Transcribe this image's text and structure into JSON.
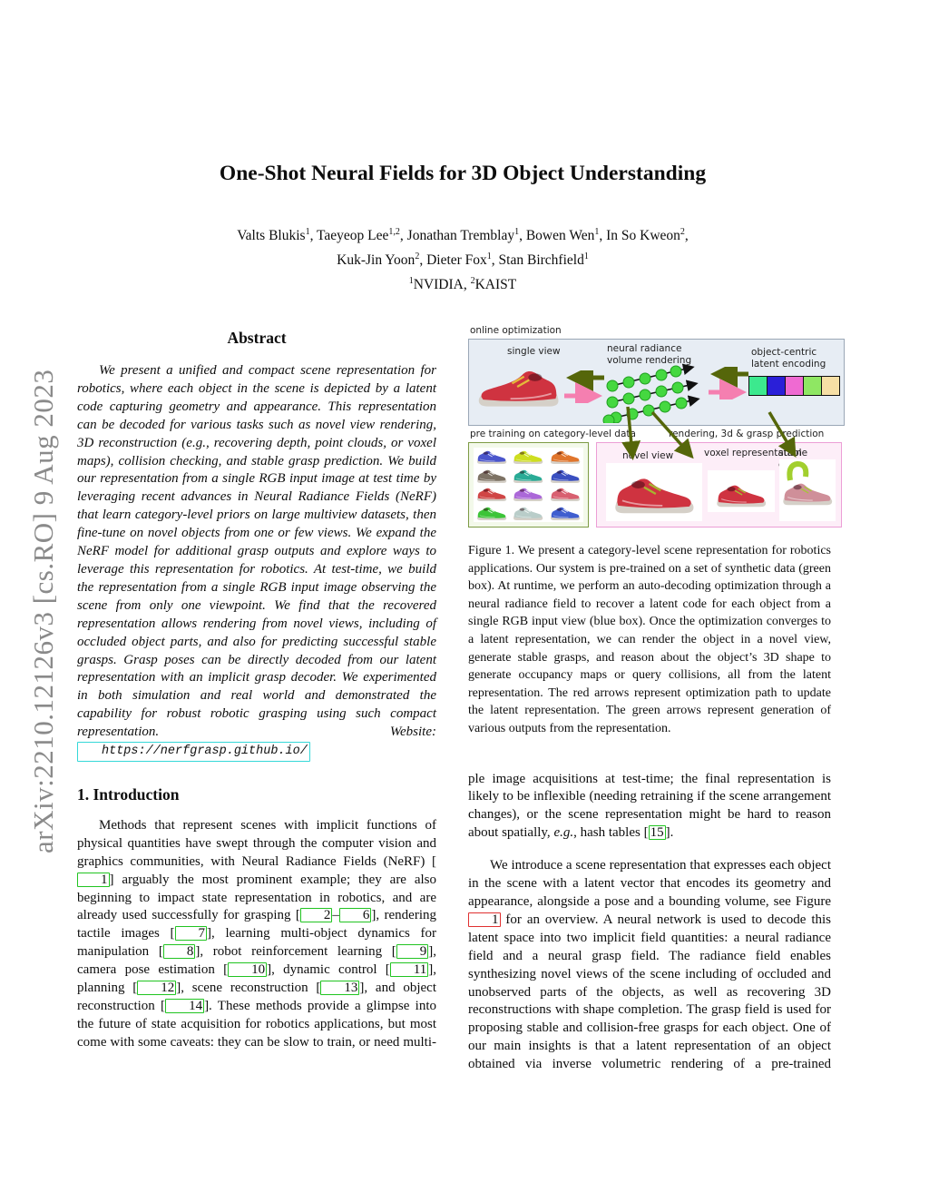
{
  "sidebar": {
    "arxiv_label": "arXiv:2210.12126v3  [cs.RO]  9 Aug 2023"
  },
  "header": {
    "title": "One-Shot Neural Fields for 3D Object Understanding",
    "author_line1": [
      {
        "t": "Valts Blukis"
      },
      {
        "sup": "1"
      },
      {
        "t": ", Taeyeop Lee"
      },
      {
        "sup": "1,2"
      },
      {
        "t": ", Jonathan Tremblay"
      },
      {
        "sup": "1"
      },
      {
        "t": ", Bowen Wen"
      },
      {
        "sup": "1"
      },
      {
        "t": ", In So Kweon"
      },
      {
        "sup": "2"
      },
      {
        "t": ","
      }
    ],
    "author_line2": [
      {
        "t": "Kuk-Jin Yoon"
      },
      {
        "sup": "2"
      },
      {
        "t": ", Dieter Fox"
      },
      {
        "sup": "1"
      },
      {
        "t": ", Stan Birchfield"
      },
      {
        "sup": "1"
      }
    ],
    "author_line3": [
      {
        "sup": "1"
      },
      {
        "t": "NVIDIA, "
      },
      {
        "sup": "2"
      },
      {
        "t": "KAIST"
      }
    ]
  },
  "abstract": {
    "heading": "Abstract",
    "segments": [
      {
        "t": "We present a unified and compact scene representation for robotics, where each object in the scene is depicted by a latent code capturing geometry and appearance. This representation can be decoded for various tasks such as novel view rendering, 3D reconstruction (e.g., recovering depth, point clouds, or voxel maps), collision checking, and stable grasp prediction. We build our representation from a single RGB input image at test time by leveraging recent advances in Neural Radiance Fields (NeRF) that learn category-level priors on large multiview datasets, then fine-tune on novel objects from one or few views. We expand the NeRF model for additional grasp outputs and explore ways to leverage this representation for robotics. At test-time, we build the representation from a single RGB input image observing the scene from only one viewpoint. We find that the recovered representation allows rendering from novel views, including of occluded object parts, and also for predicting successful stable grasps. Grasp poses can be directly decoded from our latent representation with an implicit grasp decoder. We experimented in both simulation and real world and demonstrated the capability for robust robotic grasping using such compact representation. Website: "
      },
      {
        "url": "https://nerfgrasp.github.io/"
      }
    ]
  },
  "intro": {
    "heading": "1. Introduction",
    "para1": [
      {
        "t": "Methods that represent scenes with implicit functions of physical quantities have swept through the computer vision and graphics communities, with Neural Radiance Fields (NeRF) ["
      },
      {
        "cite": "1"
      },
      {
        "t": "] arguably the most prominent example; they are also beginning to impact state representation in robotics, and are already used successfully for grasping ["
      },
      {
        "cite": "2"
      },
      {
        "t": "–"
      },
      {
        "cite": "6"
      },
      {
        "t": "], rendering tactile images ["
      },
      {
        "cite": "7"
      },
      {
        "t": "], learning multi-object dynamics for manipulation ["
      },
      {
        "cite": "8"
      },
      {
        "t": "], robot reinforcement learning ["
      },
      {
        "cite": "9"
      },
      {
        "t": "], camera pose estimation ["
      },
      {
        "cite": "10"
      },
      {
        "t": "], dynamic control ["
      },
      {
        "cite": "11"
      },
      {
        "t": "], planning ["
      },
      {
        "cite": "12"
      },
      {
        "t": "], scene reconstruction ["
      },
      {
        "cite": "13"
      },
      {
        "t": "], and object reconstruction ["
      },
      {
        "cite": "14"
      },
      {
        "t": "]. These methods provide a glimpse into the future of state acquisition for robotics applications, but most come with some caveats: they can be slow to train, or need multi-"
      }
    ]
  },
  "right_column": {
    "para1": [
      {
        "t": "ple image acquisitions at test-time; the final representation is likely to be inflexible (needing retraining if the scene arrangement changes), or the scene representation might be hard to reason about spatially, "
      },
      {
        "i": "e.g."
      },
      {
        "t": ", hash tables ["
      },
      {
        "cite": "15"
      },
      {
        "t": "]."
      }
    ],
    "para2": [
      {
        "t": "We introduce a scene representation that expresses each object in the scene with a latent vector that encodes its geometry and appearance, alongside a pose and a bounding volume, see Figure "
      },
      {
        "figref": "1"
      },
      {
        "t": " for an overview. A neural network is used to decode this latent space into two implicit field quantities: a neural radiance field and a neural grasp field. The radiance field enables synthesizing novel views of the scene including of occluded and unobserved parts of the objects, as well as recovering 3D reconstructions with shape completion. The grasp field is used for proposing stable and collision-free grasps for each object. One of our main insights is that a latent representation of an object obtained via inverse volumetric rendering of a pre-trained"
      }
    ]
  },
  "figure": {
    "caption": "Figure 1.  We present a category-level scene representation for robotics applications.  Our system is pre-trained on a set of synthetic data (green box). At runtime, we perform an auto-decoding optimization through a neural radiance field to recover a latent code for each object from a single RGB input view (blue box). Once the optimization converges to a latent representation, we can render the object in a novel view, generate stable grasps, and reason about the object’s 3D shape to generate occupancy maps or query collisions, all from the latent representation.  The red arrows represent optimization path to update the latent representation.  The green arrows represent generation of various outputs from the representation.",
    "labels": {
      "online": "online optimization",
      "single_view": "single view",
      "nerf": "neural radiance\nvolume rendering",
      "latent": "object-centric\nlatent encoding",
      "pretrain": "pre training on category-level data",
      "rendering": "rendering, 3d & grasp prediction",
      "novel": "novel view",
      "voxel": "voxel representation",
      "grasps": "stable grasps"
    },
    "colors": {
      "arrow_green": "#55660a",
      "arrow_pink": "#f57fb0",
      "dot_green": "#45d840",
      "shoe_red": "#cf3340",
      "shoe_dusty_pink": "#cf8f99",
      "gripper_green": "#a2cf2e"
    },
    "latent_colors": [
      "#3ce98e",
      "#2a1fd8",
      "#ef6ad2",
      "#8fe763",
      "#f6dfa5"
    ],
    "pretrain_shoes": [
      {
        "c": "#4a55cc"
      },
      {
        "c": "#cede20"
      },
      {
        "c": "#e0752c"
      },
      {
        "c": "#7d7264"
      },
      {
        "c": "#2aab96"
      },
      {
        "c": "#3a4fc0"
      },
      {
        "c": "#d04545"
      },
      {
        "c": "#ab68d8"
      },
      {
        "c": "#d86070"
      },
      {
        "c": "#3cc438"
      },
      {
        "c": "#b9cdc9"
      },
      {
        "c": "#3f5ecf"
      }
    ]
  }
}
